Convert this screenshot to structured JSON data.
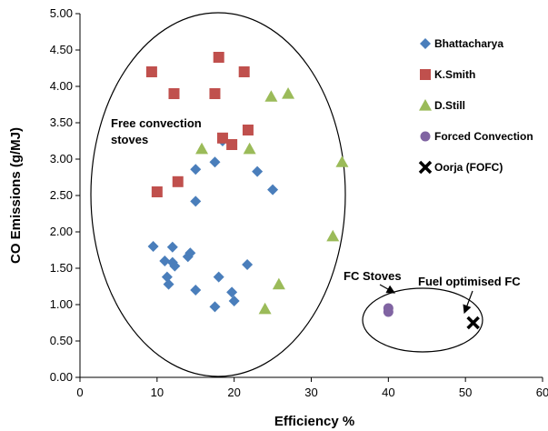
{
  "chart_data": {
    "type": "scatter",
    "title": "",
    "xlabel": "Efficiency %",
    "ylabel": "CO Emissions (g/MJ)",
    "xlim": [
      0,
      60
    ],
    "ylim": [
      0,
      5
    ],
    "x_ticks": [
      "0",
      "10",
      "20",
      "30",
      "40",
      "50",
      "60"
    ],
    "y_ticks": [
      "0.00",
      "0.50",
      "1.00",
      "1.50",
      "2.00",
      "2.50",
      "3.00",
      "3.50",
      "4.00",
      "4.50",
      "5.00"
    ],
    "grid": false,
    "legend_position": "right",
    "series": [
      {
        "name": "Bhattacharya",
        "marker": "diamond",
        "color": "#4a7ebb",
        "points": [
          [
            9.5,
            1.8
          ],
          [
            11.0,
            1.6
          ],
          [
            11.3,
            1.38
          ],
          [
            11.5,
            1.28
          ],
          [
            12.0,
            1.79
          ],
          [
            12.0,
            1.58
          ],
          [
            12.3,
            1.53
          ],
          [
            14.0,
            1.66
          ],
          [
            14.3,
            1.71
          ],
          [
            15.0,
            2.86
          ],
          [
            15.0,
            2.42
          ],
          [
            15.0,
            1.2
          ],
          [
            17.5,
            2.96
          ],
          [
            17.5,
            0.97
          ],
          [
            18.0,
            1.38
          ],
          [
            18.5,
            3.25
          ],
          [
            19.7,
            1.17
          ],
          [
            20.0,
            1.05
          ],
          [
            21.7,
            1.55
          ],
          [
            23.0,
            2.83
          ],
          [
            25.0,
            2.58
          ]
        ]
      },
      {
        "name": "K.Smith",
        "marker": "square",
        "color": "#c0504d",
        "points": [
          [
            9.3,
            4.2
          ],
          [
            10.0,
            2.55
          ],
          [
            12.2,
            3.9
          ],
          [
            12.7,
            2.69
          ],
          [
            17.5,
            3.9
          ],
          [
            18.0,
            4.4
          ],
          [
            18.5,
            3.29
          ],
          [
            19.7,
            3.2
          ],
          [
            21.3,
            4.2
          ],
          [
            21.8,
            3.4
          ]
        ]
      },
      {
        "name": "D.Still",
        "marker": "triangle",
        "color": "#9bbb59",
        "points": [
          [
            15.8,
            3.14
          ],
          [
            22.0,
            3.14
          ],
          [
            24.8,
            3.86
          ],
          [
            27.0,
            3.9
          ],
          [
            24.0,
            0.94
          ],
          [
            25.8,
            1.28
          ],
          [
            32.8,
            1.94
          ],
          [
            34.0,
            2.96
          ]
        ]
      },
      {
        "name": "Forced Convection",
        "marker": "circle",
        "color": "#8064a2",
        "points": [
          [
            40.0,
            0.95
          ],
          [
            40.0,
            0.9
          ]
        ]
      },
      {
        "name": "Oorja (FOFC)",
        "marker": "x",
        "color": "#000000",
        "points": [
          [
            51.0,
            0.75
          ]
        ]
      }
    ],
    "annotations": {
      "free_convection": "Free convection stoves",
      "free_convection_line1": "Free convection",
      "free_convection_line2": "stoves",
      "fc_stoves": "FC Stoves",
      "fuel_optimised": "Fuel optimised FC"
    }
  }
}
